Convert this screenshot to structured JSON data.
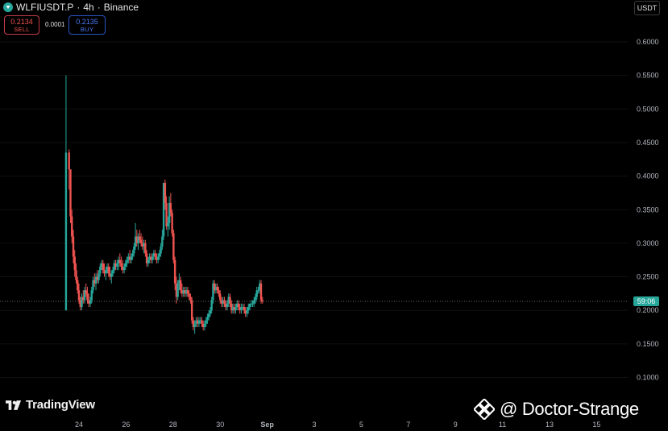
{
  "header": {
    "symbol": "WLFIUSDT.P",
    "interval": "4h",
    "exchange": "Binance",
    "separator": "·"
  },
  "quote": {
    "sell_price": "0.2134",
    "sell_label": "SELL",
    "spread": "0.0001",
    "buy_price": "0.2135",
    "buy_label": "BUY"
  },
  "currency_button": "USDT",
  "brand": {
    "name": "TradingView"
  },
  "watermark": {
    "text": "@ Doctor-Strange"
  },
  "price_tag": "59:06",
  "colors": {
    "up": "#26a69a",
    "down": "#ef5350",
    "background": "#000000"
  },
  "chart_data": {
    "type": "candlestick",
    "title": "",
    "xlabel": "",
    "ylabel": "",
    "ylim": [
      0.09,
      0.62
    ],
    "y_ticks": [
      "0.6000",
      "0.5500",
      "0.5000",
      "0.4500",
      "0.4000",
      "0.3500",
      "0.3000",
      "0.2500",
      "0.2000",
      "0.1500",
      "0.1000"
    ],
    "x_ticks": [
      {
        "label": "24",
        "x": 0
      },
      {
        "label": "26",
        "x": 2
      },
      {
        "label": "28",
        "x": 4
      },
      {
        "label": "30",
        "x": 6
      },
      {
        "label": "Sep",
        "x": 8
      },
      {
        "label": "3",
        "x": 10
      },
      {
        "label": "5",
        "x": 12
      },
      {
        "label": "7",
        "x": 14
      },
      {
        "label": "9",
        "x": 16
      },
      {
        "label": "11",
        "x": 18
      },
      {
        "label": "13",
        "x": 20
      },
      {
        "label": "15",
        "x": 22
      }
    ],
    "current_price": 0.2134,
    "candles": [
      [
        -0.55,
        0.2,
        0.55,
        0.2,
        0.435
      ],
      [
        -0.42,
        0.435,
        0.44,
        0.38,
        0.41
      ],
      [
        -0.36,
        0.41,
        0.41,
        0.33,
        0.34
      ],
      [
        -0.3,
        0.34,
        0.35,
        0.3,
        0.31
      ],
      [
        -0.24,
        0.31,
        0.32,
        0.27,
        0.28
      ],
      [
        -0.18,
        0.28,
        0.29,
        0.25,
        0.26
      ],
      [
        -0.12,
        0.26,
        0.27,
        0.24,
        0.245
      ],
      [
        -0.06,
        0.245,
        0.25,
        0.225,
        0.23
      ],
      [
        0.0,
        0.23,
        0.24,
        0.21,
        0.215
      ],
      [
        0.06,
        0.215,
        0.22,
        0.2,
        0.205
      ],
      [
        0.12,
        0.205,
        0.225,
        0.2,
        0.22
      ],
      [
        0.18,
        0.22,
        0.23,
        0.21,
        0.215
      ],
      [
        0.24,
        0.215,
        0.235,
        0.21,
        0.23
      ],
      [
        0.3,
        0.23,
        0.24,
        0.22,
        0.225
      ],
      [
        0.36,
        0.225,
        0.235,
        0.21,
        0.215
      ],
      [
        0.42,
        0.215,
        0.225,
        0.205,
        0.21
      ],
      [
        0.48,
        0.21,
        0.22,
        0.205,
        0.215
      ],
      [
        0.54,
        0.215,
        0.235,
        0.21,
        0.23
      ],
      [
        0.6,
        0.23,
        0.25,
        0.225,
        0.245
      ],
      [
        0.66,
        0.245,
        0.255,
        0.235,
        0.24
      ],
      [
        0.72,
        0.24,
        0.255,
        0.23,
        0.25
      ],
      [
        0.78,
        0.25,
        0.26,
        0.24,
        0.245
      ],
      [
        0.84,
        0.245,
        0.26,
        0.24,
        0.255
      ],
      [
        0.9,
        0.255,
        0.27,
        0.25,
        0.265
      ],
      [
        0.96,
        0.265,
        0.275,
        0.26,
        0.27
      ],
      [
        1.02,
        0.27,
        0.275,
        0.255,
        0.26
      ],
      [
        1.08,
        0.26,
        0.27,
        0.25,
        0.255
      ],
      [
        1.14,
        0.255,
        0.265,
        0.245,
        0.26
      ],
      [
        1.2,
        0.26,
        0.27,
        0.255,
        0.265
      ],
      [
        1.26,
        0.265,
        0.27,
        0.25,
        0.255
      ],
      [
        1.32,
        0.255,
        0.265,
        0.245,
        0.25
      ],
      [
        1.38,
        0.25,
        0.26,
        0.24,
        0.255
      ],
      [
        1.44,
        0.255,
        0.265,
        0.25,
        0.26
      ],
      [
        1.5,
        0.26,
        0.275,
        0.255,
        0.27
      ],
      [
        1.56,
        0.27,
        0.275,
        0.26,
        0.265
      ],
      [
        1.62,
        0.265,
        0.275,
        0.26,
        0.27
      ],
      [
        1.68,
        0.27,
        0.28,
        0.26,
        0.275
      ],
      [
        1.74,
        0.275,
        0.285,
        0.265,
        0.27
      ],
      [
        1.8,
        0.27,
        0.28,
        0.26,
        0.265
      ],
      [
        1.86,
        0.265,
        0.275,
        0.255,
        0.26
      ],
      [
        1.92,
        0.26,
        0.27,
        0.255,
        0.265
      ],
      [
        1.98,
        0.265,
        0.275,
        0.26,
        0.27
      ],
      [
        2.04,
        0.27,
        0.28,
        0.265,
        0.275
      ],
      [
        2.1,
        0.275,
        0.285,
        0.27,
        0.28
      ],
      [
        2.16,
        0.28,
        0.29,
        0.27,
        0.275
      ],
      [
        2.22,
        0.275,
        0.285,
        0.27,
        0.28
      ],
      [
        2.28,
        0.28,
        0.29,
        0.275,
        0.285
      ],
      [
        2.34,
        0.285,
        0.3,
        0.28,
        0.295
      ],
      [
        2.4,
        0.295,
        0.33,
        0.29,
        0.31
      ],
      [
        2.46,
        0.31,
        0.32,
        0.295,
        0.3
      ],
      [
        2.52,
        0.3,
        0.315,
        0.29,
        0.31
      ],
      [
        2.58,
        0.31,
        0.32,
        0.3,
        0.305
      ],
      [
        2.64,
        0.305,
        0.315,
        0.295,
        0.3
      ],
      [
        2.7,
        0.3,
        0.31,
        0.29,
        0.295
      ],
      [
        2.76,
        0.295,
        0.305,
        0.285,
        0.3
      ],
      [
        2.82,
        0.3,
        0.305,
        0.28,
        0.285
      ],
      [
        2.88,
        0.285,
        0.29,
        0.265,
        0.27
      ],
      [
        2.94,
        0.27,
        0.28,
        0.265,
        0.275
      ],
      [
        3.0,
        0.275,
        0.285,
        0.27,
        0.28
      ],
      [
        3.06,
        0.28,
        0.285,
        0.27,
        0.275
      ],
      [
        3.12,
        0.275,
        0.285,
        0.27,
        0.28
      ],
      [
        3.18,
        0.28,
        0.29,
        0.275,
        0.285
      ],
      [
        3.24,
        0.285,
        0.29,
        0.275,
        0.28
      ],
      [
        3.3,
        0.28,
        0.285,
        0.27,
        0.275
      ],
      [
        3.36,
        0.275,
        0.285,
        0.27,
        0.28
      ],
      [
        3.42,
        0.28,
        0.29,
        0.275,
        0.285
      ],
      [
        3.48,
        0.285,
        0.3,
        0.28,
        0.295
      ],
      [
        3.54,
        0.295,
        0.32,
        0.29,
        0.31
      ],
      [
        3.6,
        0.31,
        0.39,
        0.305,
        0.39
      ],
      [
        3.66,
        0.39,
        0.395,
        0.35,
        0.36
      ],
      [
        3.72,
        0.36,
        0.37,
        0.32,
        0.325
      ],
      [
        3.78,
        0.325,
        0.34,
        0.31,
        0.33
      ],
      [
        3.84,
        0.33,
        0.37,
        0.32,
        0.36
      ],
      [
        3.9,
        0.36,
        0.375,
        0.34,
        0.345
      ],
      [
        3.96,
        0.345,
        0.35,
        0.31,
        0.315
      ],
      [
        4.02,
        0.315,
        0.32,
        0.27,
        0.275
      ],
      [
        4.08,
        0.275,
        0.28,
        0.23,
        0.24
      ],
      [
        4.14,
        0.24,
        0.25,
        0.21,
        0.22
      ],
      [
        4.2,
        0.22,
        0.245,
        0.215,
        0.24
      ],
      [
        4.26,
        0.24,
        0.255,
        0.23,
        0.245
      ],
      [
        4.32,
        0.245,
        0.25,
        0.225,
        0.23
      ],
      [
        4.38,
        0.23,
        0.24,
        0.22,
        0.225
      ],
      [
        4.44,
        0.225,
        0.235,
        0.22,
        0.23
      ],
      [
        4.5,
        0.23,
        0.235,
        0.22,
        0.225
      ],
      [
        4.56,
        0.225,
        0.235,
        0.22,
        0.23
      ],
      [
        4.62,
        0.23,
        0.235,
        0.22,
        0.225
      ],
      [
        4.68,
        0.225,
        0.23,
        0.215,
        0.22
      ],
      [
        4.74,
        0.22,
        0.225,
        0.21,
        0.215
      ],
      [
        4.8,
        0.215,
        0.22,
        0.18,
        0.185
      ],
      [
        4.86,
        0.185,
        0.19,
        0.17,
        0.175
      ],
      [
        4.92,
        0.175,
        0.185,
        0.165,
        0.18
      ],
      [
        4.98,
        0.18,
        0.19,
        0.175,
        0.185
      ],
      [
        5.04,
        0.185,
        0.19,
        0.175,
        0.18
      ],
      [
        5.1,
        0.18,
        0.19,
        0.175,
        0.185
      ],
      [
        5.16,
        0.185,
        0.19,
        0.18,
        0.185
      ],
      [
        5.22,
        0.185,
        0.19,
        0.175,
        0.18
      ],
      [
        5.28,
        0.18,
        0.185,
        0.17,
        0.175
      ],
      [
        5.34,
        0.175,
        0.185,
        0.17,
        0.18
      ],
      [
        5.4,
        0.18,
        0.19,
        0.175,
        0.185
      ],
      [
        5.46,
        0.185,
        0.195,
        0.18,
        0.19
      ],
      [
        5.52,
        0.19,
        0.2,
        0.185,
        0.195
      ],
      [
        5.58,
        0.195,
        0.205,
        0.19,
        0.2
      ],
      [
        5.64,
        0.2,
        0.22,
        0.195,
        0.215
      ],
      [
        5.7,
        0.215,
        0.245,
        0.21,
        0.24
      ],
      [
        5.76,
        0.24,
        0.245,
        0.225,
        0.23
      ],
      [
        5.82,
        0.23,
        0.24,
        0.225,
        0.235
      ],
      [
        5.88,
        0.235,
        0.24,
        0.225,
        0.23
      ],
      [
        5.94,
        0.23,
        0.235,
        0.22,
        0.225
      ],
      [
        6.0,
        0.225,
        0.23,
        0.21,
        0.215
      ],
      [
        6.06,
        0.215,
        0.22,
        0.205,
        0.21
      ],
      [
        6.12,
        0.21,
        0.22,
        0.205,
        0.215
      ],
      [
        6.18,
        0.215,
        0.22,
        0.205,
        0.21
      ],
      [
        6.24,
        0.21,
        0.215,
        0.2,
        0.205
      ],
      [
        6.3,
        0.205,
        0.215,
        0.2,
        0.21
      ],
      [
        6.36,
        0.21,
        0.225,
        0.205,
        0.22
      ],
      [
        6.42,
        0.22,
        0.225,
        0.205,
        0.21
      ],
      [
        6.48,
        0.21,
        0.215,
        0.195,
        0.2
      ],
      [
        6.54,
        0.2,
        0.21,
        0.195,
        0.205
      ],
      [
        6.6,
        0.205,
        0.21,
        0.195,
        0.2
      ],
      [
        6.66,
        0.2,
        0.21,
        0.195,
        0.205
      ],
      [
        6.72,
        0.205,
        0.215,
        0.2,
        0.21
      ],
      [
        6.78,
        0.21,
        0.215,
        0.2,
        0.205
      ],
      [
        6.84,
        0.205,
        0.21,
        0.195,
        0.2
      ],
      [
        6.9,
        0.2,
        0.21,
        0.195,
        0.205
      ],
      [
        6.96,
        0.205,
        0.21,
        0.2,
        0.205
      ],
      [
        7.02,
        0.205,
        0.21,
        0.195,
        0.2
      ],
      [
        7.08,
        0.2,
        0.205,
        0.19,
        0.195
      ],
      [
        7.14,
        0.195,
        0.205,
        0.19,
        0.2
      ],
      [
        7.2,
        0.2,
        0.21,
        0.195,
        0.205
      ],
      [
        7.26,
        0.205,
        0.21,
        0.2,
        0.21
      ],
      [
        7.32,
        0.21,
        0.215,
        0.205,
        0.21
      ],
      [
        7.38,
        0.21,
        0.215,
        0.205,
        0.21
      ],
      [
        7.44,
        0.21,
        0.22,
        0.205,
        0.215
      ],
      [
        7.5,
        0.215,
        0.225,
        0.21,
        0.22
      ],
      [
        7.56,
        0.22,
        0.235,
        0.215,
        0.23
      ],
      [
        7.62,
        0.23,
        0.235,
        0.225,
        0.23
      ],
      [
        7.68,
        0.23,
        0.245,
        0.225,
        0.24
      ],
      [
        7.74,
        0.24,
        0.245,
        0.21,
        0.215
      ],
      [
        7.8,
        0.215,
        0.22,
        0.21,
        0.2134
      ]
    ]
  }
}
